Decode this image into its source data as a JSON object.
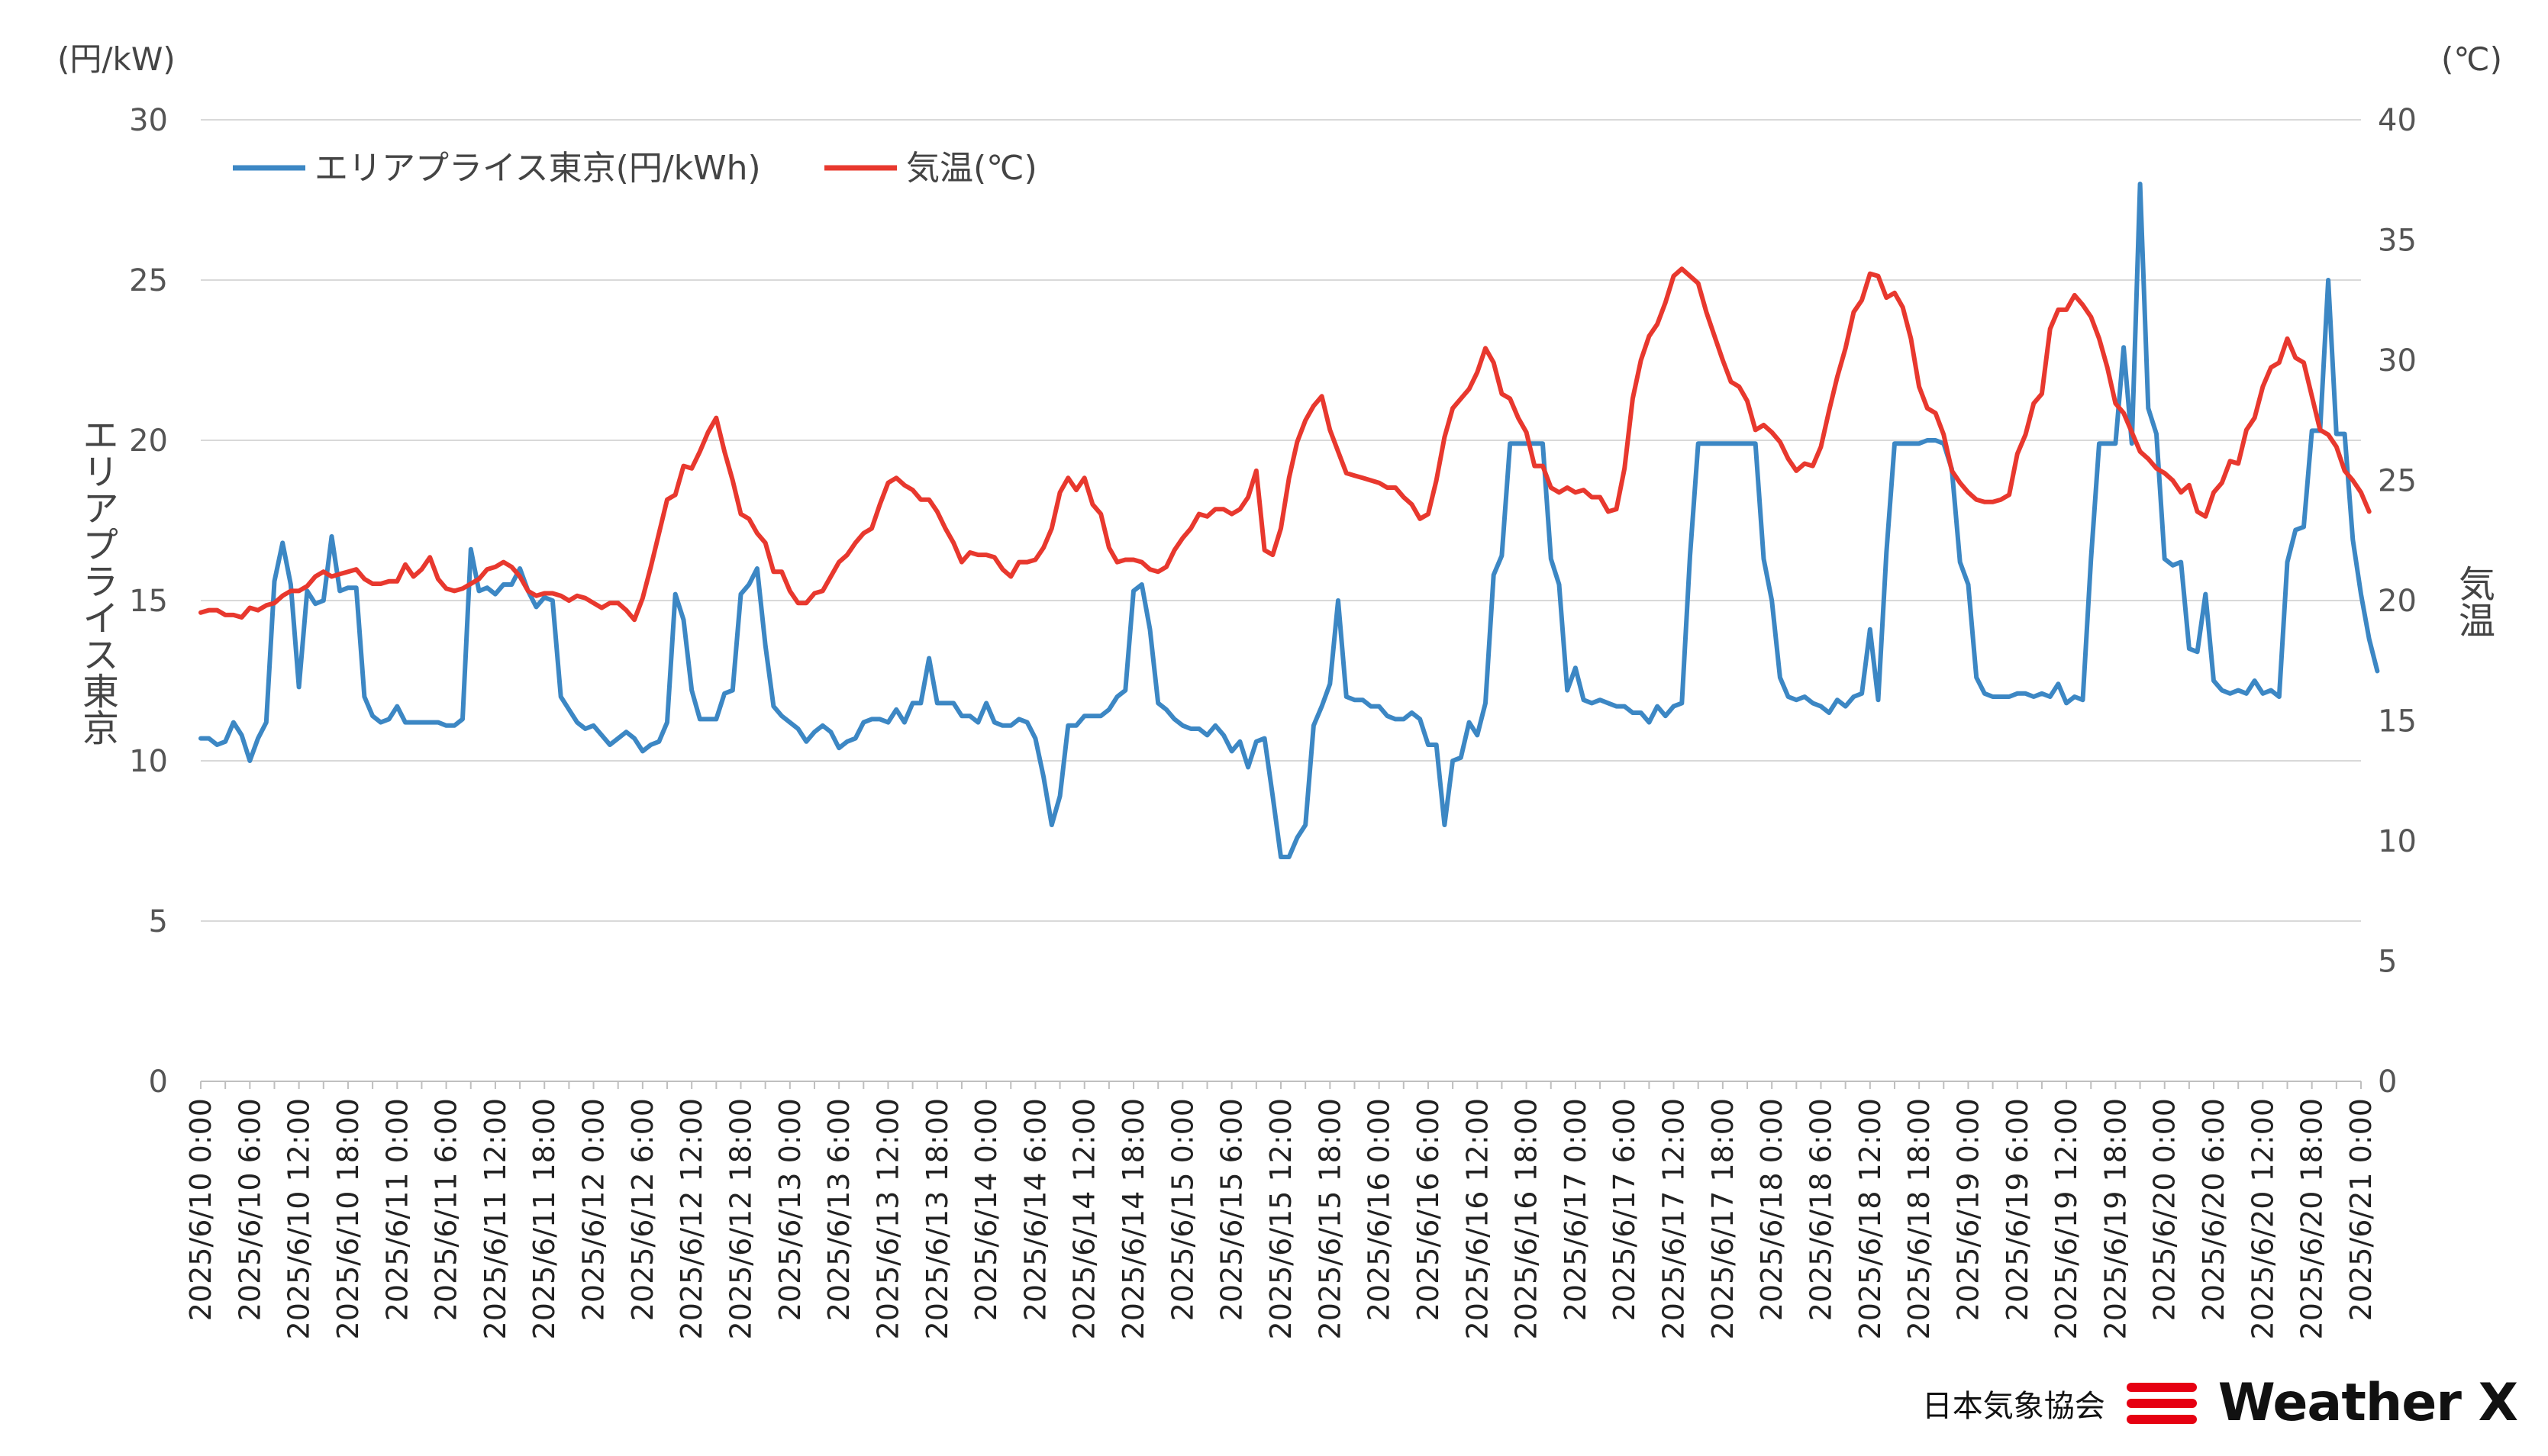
{
  "chart_data": {
    "type": "line",
    "left_unit": "(円/kW)",
    "right_unit": "(℃)",
    "ylabel_left": "エリアプライス東京",
    "ylabel_right": "気温",
    "ylim_left": [
      0,
      30
    ],
    "ylim_right": [
      0,
      40
    ],
    "yticks_left": [
      "0",
      "5",
      "10",
      "15",
      "20",
      "25",
      "30"
    ],
    "yticks_right": [
      "0",
      "5",
      "10",
      "15",
      "20",
      "25",
      "30",
      "35",
      "40"
    ],
    "grid": true,
    "legend_position": "top-left",
    "x_start": "2025/6/10 0:00",
    "x_end": "2025/6/21 0:00",
    "x_step_hours": 1,
    "xtick_labels": [
      "2025/6/10 0:00",
      "2025/6/10 6:00",
      "2025/6/10 12:00",
      "2025/6/10 18:00",
      "2025/6/11 0:00",
      "2025/6/11 6:00",
      "2025/6/11 12:00",
      "2025/6/11 18:00",
      "2025/6/12 0:00",
      "2025/6/12 6:00",
      "2025/6/12 12:00",
      "2025/6/12 18:00",
      "2025/6/13 0:00",
      "2025/6/13 6:00",
      "2025/6/13 12:00",
      "2025/6/13 18:00",
      "2025/6/14 0:00",
      "2025/6/14 6:00",
      "2025/6/14 12:00",
      "2025/6/14 18:00",
      "2025/6/15 0:00",
      "2025/6/15 6:00",
      "2025/6/15 12:00",
      "2025/6/15 18:00",
      "2025/6/16 0:00",
      "2025/6/16 6:00",
      "2025/6/16 12:00",
      "2025/6/16 18:00",
      "2025/6/17 0:00",
      "2025/6/17 6:00",
      "2025/6/17 12:00",
      "2025/6/17 18:00",
      "2025/6/18 0:00",
      "2025/6/18 6:00",
      "2025/6/18 12:00",
      "2025/6/18 18:00",
      "2025/6/19 0:00",
      "2025/6/19 6:00",
      "2025/6/19 12:00",
      "2025/6/19 18:00",
      "2025/6/20 0:00",
      "2025/6/20 6:00",
      "2025/6/20 12:00",
      "2025/6/20 18:00",
      "2025/6/21 0:00"
    ],
    "series": [
      {
        "name": "エリアプライス東京(円/kWh)",
        "axis": "left",
        "color": "#3c87c4",
        "values": [
          10.7,
          10.7,
          10.5,
          10.6,
          11.2,
          10.8,
          10.0,
          10.7,
          11.2,
          15.6,
          16.8,
          15.5,
          12.3,
          15.3,
          14.9,
          15.0,
          17.0,
          15.3,
          15.4,
          15.4,
          12.0,
          11.4,
          11.2,
          11.3,
          11.7,
          11.2,
          11.2,
          11.2,
          11.2,
          11.2,
          11.1,
          11.1,
          11.3,
          16.6,
          15.3,
          15.4,
          15.2,
          15.5,
          15.5,
          16.0,
          15.3,
          14.8,
          15.1,
          15.0,
          12.0,
          11.6,
          11.2,
          11.0,
          11.1,
          10.8,
          10.5,
          10.7,
          10.9,
          10.7,
          10.3,
          10.5,
          10.6,
          11.2,
          15.2,
          14.4,
          12.2,
          11.3,
          11.3,
          11.3,
          12.1,
          12.2,
          15.2,
          15.5,
          16.0,
          13.6,
          11.7,
          11.4,
          11.2,
          11.0,
          10.6,
          10.9,
          11.1,
          10.9,
          10.4,
          10.6,
          10.7,
          11.2,
          11.3,
          11.3,
          11.2,
          11.6,
          11.2,
          11.8,
          11.8,
          13.2,
          11.8,
          11.8,
          11.8,
          11.4,
          11.4,
          11.2,
          11.8,
          11.2,
          11.1,
          11.1,
          11.3,
          11.2,
          10.7,
          9.5,
          8.0,
          8.9,
          11.1,
          11.1,
          11.4,
          11.4,
          11.4,
          11.6,
          12.0,
          12.2,
          15.3,
          15.5,
          14.1,
          11.8,
          11.6,
          11.3,
          11.1,
          11.0,
          11.0,
          10.8,
          11.1,
          10.8,
          10.3,
          10.6,
          9.8,
          10.6,
          10.7,
          8.9,
          7.0,
          7.0,
          7.6,
          8.0,
          11.1,
          11.7,
          12.4,
          15.0,
          12.0,
          11.9,
          11.9,
          11.7,
          11.7,
          11.4,
          11.3,
          11.3,
          11.5,
          11.3,
          10.5,
          10.5,
          8.0,
          10.0,
          10.1,
          11.2,
          10.8,
          11.8,
          15.8,
          16.4,
          19.9,
          19.9,
          19.9,
          19.9,
          19.9,
          16.3,
          15.5,
          12.2,
          12.9,
          11.9,
          11.8,
          11.9,
          11.8,
          11.7,
          11.7,
          11.5,
          11.5,
          11.2,
          11.7,
          11.4,
          11.7,
          11.8,
          16.4,
          19.9,
          19.9,
          19.9,
          19.9,
          19.9,
          19.9,
          19.9,
          19.9,
          16.3,
          15.0,
          12.6,
          12.0,
          11.9,
          12.0,
          11.8,
          11.7,
          11.5,
          11.9,
          11.7,
          12.0,
          12.1,
          14.1,
          11.9,
          16.5,
          19.9,
          19.9,
          19.9,
          19.9,
          20.0,
          20.0,
          19.9,
          19.1,
          16.2,
          15.5,
          12.6,
          12.1,
          12.0,
          12.0,
          12.0,
          12.1,
          12.1,
          12.0,
          12.1,
          12.0,
          12.4,
          11.8,
          12.0,
          11.9,
          16.3,
          19.9,
          19.9,
          19.9,
          22.9,
          19.9,
          28.0,
          21.0,
          20.2,
          16.3,
          16.1,
          16.2,
          13.5,
          13.4,
          15.2,
          12.5,
          12.2,
          12.1,
          12.2,
          12.1,
          12.5,
          12.1,
          12.2,
          12.0,
          16.2,
          17.2,
          17.3,
          20.3,
          20.3,
          25.0,
          20.2,
          20.2,
          16.9,
          15.2,
          13.8,
          12.8
        ]
      },
      {
        "name": "気温(℃)",
        "axis": "right",
        "color": "#e8382e",
        "values": [
          19.5,
          19.6,
          19.6,
          19.4,
          19.4,
          19.3,
          19.7,
          19.6,
          19.8,
          19.9,
          20.2,
          20.4,
          20.4,
          20.6,
          21.0,
          21.2,
          21.0,
          21.1,
          21.2,
          21.3,
          20.9,
          20.7,
          20.7,
          20.8,
          20.8,
          21.5,
          21.0,
          21.3,
          21.8,
          20.9,
          20.5,
          20.4,
          20.5,
          20.7,
          20.9,
          21.3,
          21.4,
          21.6,
          21.4,
          21.0,
          20.4,
          20.2,
          20.3,
          20.3,
          20.2,
          20.0,
          20.2,
          20.1,
          19.9,
          19.7,
          19.9,
          19.9,
          19.6,
          19.2,
          20.1,
          21.4,
          22.8,
          24.2,
          24.4,
          25.6,
          25.5,
          26.2,
          27.0,
          27.6,
          26.2,
          25.0,
          23.6,
          23.4,
          22.8,
          22.4,
          21.2,
          21.2,
          20.4,
          19.9,
          19.9,
          20.3,
          20.4,
          21.0,
          21.6,
          21.9,
          22.4,
          22.8,
          23.0,
          24.0,
          24.9,
          25.1,
          24.8,
          24.6,
          24.2,
          24.2,
          23.7,
          23.0,
          22.4,
          21.6,
          22.0,
          21.9,
          21.9,
          21.8,
          21.3,
          21.0,
          21.6,
          21.6,
          21.7,
          22.2,
          23.0,
          24.5,
          25.1,
          24.6,
          25.1,
          24.0,
          23.6,
          22.2,
          21.6,
          21.7,
          21.7,
          21.6,
          21.3,
          21.2,
          21.4,
          22.1,
          22.6,
          23.0,
          23.6,
          23.5,
          23.8,
          23.8,
          23.6,
          23.8,
          24.3,
          25.4,
          22.1,
          21.9,
          23.0,
          25.1,
          26.6,
          27.5,
          28.1,
          28.5,
          27.1,
          26.2,
          25.3,
          25.2,
          25.1,
          25.0,
          24.9,
          24.7,
          24.7,
          24.3,
          24.0,
          23.4,
          23.6,
          25.0,
          26.8,
          28.0,
          28.4,
          28.8,
          29.5,
          30.5,
          29.9,
          28.6,
          28.4,
          27.6,
          27.0,
          25.6,
          25.6,
          24.7,
          24.5,
          24.7,
          24.5,
          24.6,
          24.3,
          24.3,
          23.7,
          23.8,
          25.5,
          28.4,
          30.0,
          31.0,
          31.5,
          32.4,
          33.5,
          33.8,
          33.5,
          33.2,
          32.0,
          31.0,
          30.0,
          29.1,
          28.9,
          28.3,
          27.1,
          27.3,
          27.0,
          26.6,
          25.9,
          25.4,
          25.7,
          25.6,
          26.4,
          27.9,
          29.3,
          30.5,
          32.0,
          32.5,
          33.6,
          33.5,
          32.6,
          32.8,
          32.2,
          30.9,
          28.9,
          28.0,
          27.8,
          26.9,
          25.4,
          24.9,
          24.5,
          24.2,
          24.1,
          24.1,
          24.2,
          24.4,
          26.1,
          26.9,
          28.2,
          28.6,
          31.3,
          32.1,
          32.1,
          32.7,
          32.3,
          31.8,
          30.9,
          29.7,
          28.2,
          27.8,
          27.0,
          26.2,
          25.9,
          25.5,
          25.3,
          25.0,
          24.5,
          24.8,
          23.7,
          23.5,
          24.5,
          24.9,
          25.8,
          25.7,
          27.1,
          27.6,
          28.9,
          29.7,
          29.9,
          30.9,
          30.1,
          29.9,
          28.5,
          27.1,
          26.9,
          26.4,
          25.4,
          25.0,
          24.5,
          23.7
        ]
      }
    ]
  },
  "logo": {
    "org_text": "日本気象協会",
    "brand_text": "Weather X",
    "brand_color": "#e60012"
  }
}
